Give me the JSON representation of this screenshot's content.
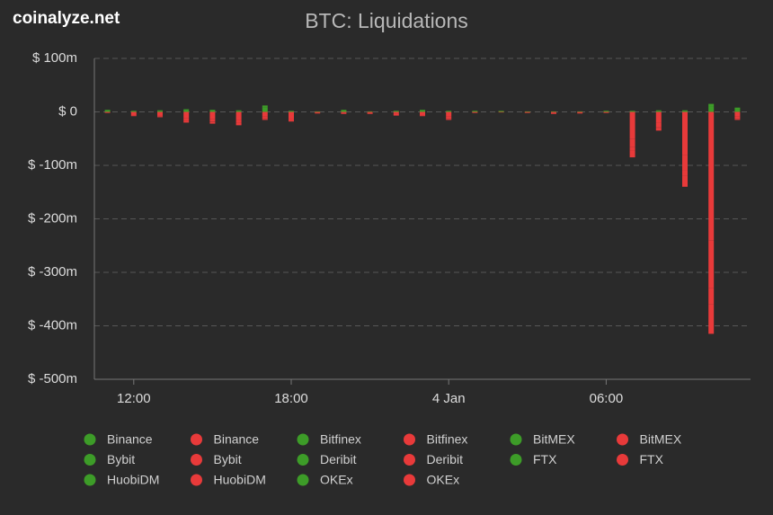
{
  "brand": "coinalyze.net",
  "chart_data": {
    "type": "bar",
    "stacked": true,
    "title": "BTC: Liquidations",
    "categories": [
      null,
      "12:00",
      null,
      null,
      null,
      null,
      null,
      "18:00",
      null,
      null,
      null,
      null,
      null,
      "4 Jan",
      null,
      null,
      null,
      null,
      null,
      "06:00",
      null,
      null,
      null,
      null,
      null
    ],
    "ylim": [
      -500,
      100
    ],
    "yticks": [
      {
        "value": 100,
        "label": "$ 100m"
      },
      {
        "value": 0,
        "label": "$ 0"
      },
      {
        "value": -100,
        "label": "$ -100m"
      },
      {
        "value": -200,
        "label": "$ -200m"
      },
      {
        "value": -300,
        "label": "$ -300m"
      },
      {
        "value": -400,
        "label": "$ -400m"
      },
      {
        "value": -500,
        "label": "$ -500m"
      }
    ],
    "grid": true,
    "series": [
      {
        "name": "Binance",
        "color": "#3d9c28",
        "values": [
          3,
          2,
          2,
          4,
          3,
          2,
          9,
          2,
          1,
          3,
          1,
          2,
          3,
          2,
          2,
          1,
          1,
          1,
          1,
          2,
          2,
          2,
          2,
          10,
          5
        ]
      },
      {
        "name": "Binance",
        "color": "#e83a3a",
        "values": [
          -1,
          -5,
          -6,
          -12,
          -13,
          -15,
          -9,
          -11,
          -2,
          -2,
          -2,
          -4,
          -5,
          -9,
          -1,
          -1,
          -1,
          -2,
          -2,
          -1,
          -50,
          -20,
          -80,
          -240,
          -9
        ]
      },
      {
        "name": "Bitfinex",
        "color": "#3d9c28",
        "values": [
          0,
          0,
          0,
          0,
          0,
          0,
          0,
          0,
          0,
          0,
          0,
          0,
          0,
          0,
          0,
          0,
          0,
          0,
          0,
          0,
          0,
          0,
          0,
          0,
          0
        ]
      },
      {
        "name": "Bitfinex",
        "color": "#e83a3a",
        "values": [
          0,
          0,
          0,
          0,
          0,
          0,
          0,
          0,
          0,
          0,
          0,
          0,
          0,
          0,
          0,
          0,
          0,
          0,
          0,
          0,
          0,
          0,
          0,
          0,
          0
        ]
      },
      {
        "name": "BitMEX",
        "color": "#3d9c28",
        "values": [
          0,
          0,
          0,
          0,
          0,
          0,
          0,
          0,
          0,
          0,
          0,
          0,
          0,
          0,
          0,
          0,
          0,
          0,
          0,
          0,
          0,
          0,
          0,
          0,
          0
        ]
      },
      {
        "name": "BitMEX",
        "color": "#e83a3a",
        "values": [
          0,
          0,
          0,
          0,
          0,
          0,
          0,
          0,
          0,
          0,
          0,
          0,
          0,
          0,
          0,
          0,
          0,
          0,
          0,
          0,
          0,
          0,
          0,
          0,
          0
        ]
      },
      {
        "name": "Bybit",
        "color": "#3d9c28",
        "values": [
          1,
          0,
          1,
          1,
          1,
          1,
          3,
          0,
          0,
          1,
          0,
          0,
          1,
          0,
          0,
          1,
          0,
          0,
          0,
          0,
          0,
          1,
          1,
          5,
          3
        ]
      },
      {
        "name": "Bybit",
        "color": "#e83a3a",
        "values": [
          -1,
          -2,
          -2,
          -4,
          -5,
          -5,
          -3,
          -4,
          -1,
          -1,
          -1,
          -2,
          -2,
          -3,
          -1,
          0,
          -1,
          -1,
          -1,
          -1,
          -15,
          -8,
          -30,
          -90,
          -3
        ]
      },
      {
        "name": "Deribit",
        "color": "#3d9c28",
        "values": [
          0,
          0,
          0,
          0,
          0,
          0,
          0,
          0,
          0,
          0,
          0,
          0,
          0,
          0,
          0,
          0,
          0,
          0,
          0,
          0,
          0,
          0,
          0,
          0,
          0
        ]
      },
      {
        "name": "Deribit",
        "color": "#e83a3a",
        "values": [
          0,
          0,
          0,
          0,
          0,
          0,
          0,
          0,
          0,
          0,
          0,
          0,
          0,
          0,
          0,
          0,
          0,
          0,
          0,
          0,
          0,
          0,
          0,
          0,
          0
        ]
      },
      {
        "name": "FTX",
        "color": "#3d9c28",
        "values": [
          0,
          0,
          0,
          0,
          0,
          0,
          0,
          0,
          0,
          0,
          0,
          0,
          0,
          0,
          0,
          0,
          0,
          0,
          0,
          0,
          0,
          0,
          0,
          0,
          0
        ]
      },
      {
        "name": "FTX",
        "color": "#e83a3a",
        "values": [
          0,
          0,
          0,
          -1,
          -1,
          -1,
          -1,
          -1,
          0,
          0,
          0,
          0,
          0,
          -1,
          0,
          0,
          0,
          0,
          0,
          0,
          -8,
          -2,
          -10,
          -30,
          -1
        ]
      },
      {
        "name": "HuobiDM",
        "color": "#3d9c28",
        "values": [
          0,
          0,
          0,
          0,
          0,
          0,
          0,
          0,
          0,
          0,
          0,
          0,
          0,
          0,
          0,
          0,
          0,
          0,
          0,
          0,
          0,
          0,
          0,
          0,
          0
        ]
      },
      {
        "name": "HuobiDM",
        "color": "#e83a3a",
        "values": [
          0,
          0,
          0,
          0,
          0,
          0,
          0,
          0,
          0,
          0,
          0,
          0,
          0,
          0,
          0,
          0,
          0,
          0,
          0,
          0,
          0,
          0,
          0,
          0,
          0
        ]
      },
      {
        "name": "OKEx",
        "color": "#3d9c28",
        "values": [
          0,
          0,
          0,
          0,
          0,
          0,
          0,
          0,
          0,
          0,
          0,
          0,
          0,
          0,
          0,
          0,
          0,
          0,
          0,
          0,
          0,
          0,
          0,
          0,
          0
        ]
      },
      {
        "name": "OKEx",
        "color": "#e83a3a",
        "values": [
          0,
          -1,
          -2,
          -3,
          -3,
          -4,
          -2,
          -2,
          0,
          -1,
          -1,
          -1,
          -1,
          -2,
          0,
          0,
          0,
          -1,
          0,
          0,
          -12,
          -5,
          -20,
          -55,
          -2
        ]
      }
    ]
  }
}
